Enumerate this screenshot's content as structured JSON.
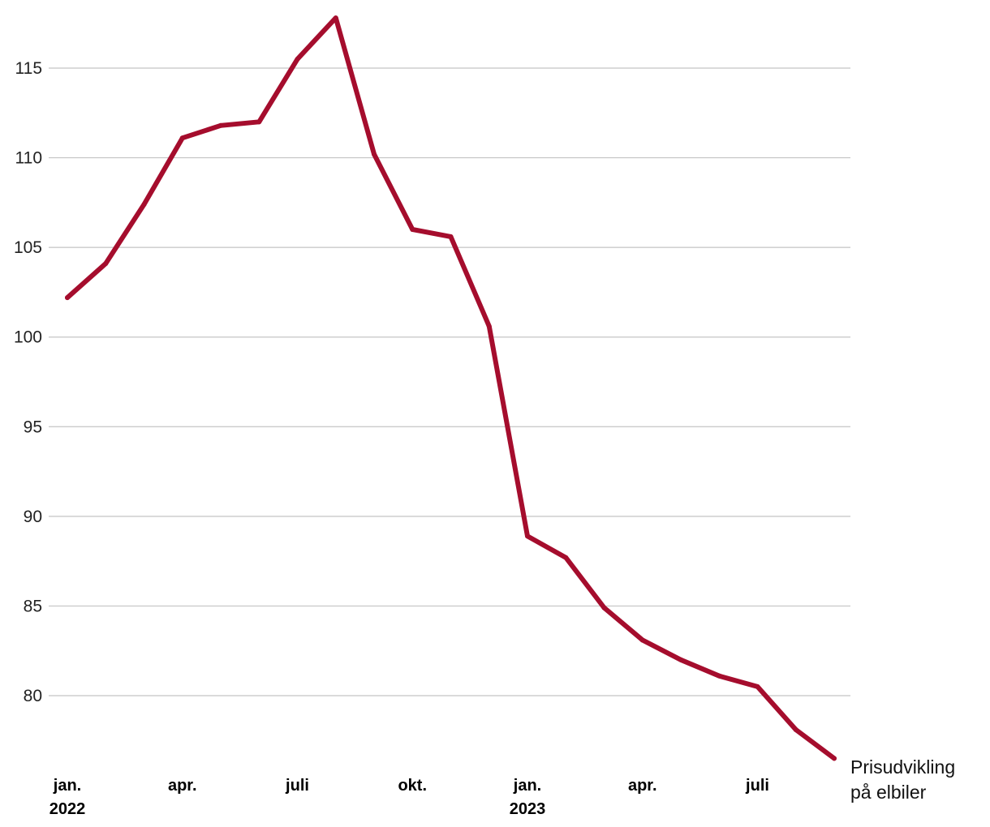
{
  "chart_data": {
    "type": "line",
    "title": "",
    "xlabel": "",
    "ylabel": "",
    "ylim": [
      76,
      118
    ],
    "yticks": [
      80,
      85,
      90,
      95,
      100,
      105,
      110,
      115
    ],
    "grid": true,
    "x_ticks": [
      {
        "index": 0,
        "line1": "jan.",
        "line2": "2022"
      },
      {
        "index": 3,
        "line1": "apr.",
        "line2": ""
      },
      {
        "index": 6,
        "line1": "juli",
        "line2": ""
      },
      {
        "index": 9,
        "line1": "okt.",
        "line2": ""
      },
      {
        "index": 12,
        "line1": "jan.",
        "line2": "2023"
      },
      {
        "index": 15,
        "line1": "apr.",
        "line2": ""
      },
      {
        "index": 18,
        "line1": "juli",
        "line2": ""
      }
    ],
    "series": [
      {
        "name": "Prisudvikling på elbiler",
        "label_lines": [
          "Prisudvikling",
          "på elbiler"
        ],
        "color": "#a50d2d",
        "values": [
          102.2,
          104.1,
          107.4,
          111.1,
          111.8,
          112.0,
          115.5,
          117.8,
          110.2,
          106.0,
          105.6,
          100.6,
          88.9,
          87.7,
          84.9,
          83.1,
          82.0,
          81.1,
          80.5,
          78.1,
          76.5
        ]
      }
    ]
  }
}
